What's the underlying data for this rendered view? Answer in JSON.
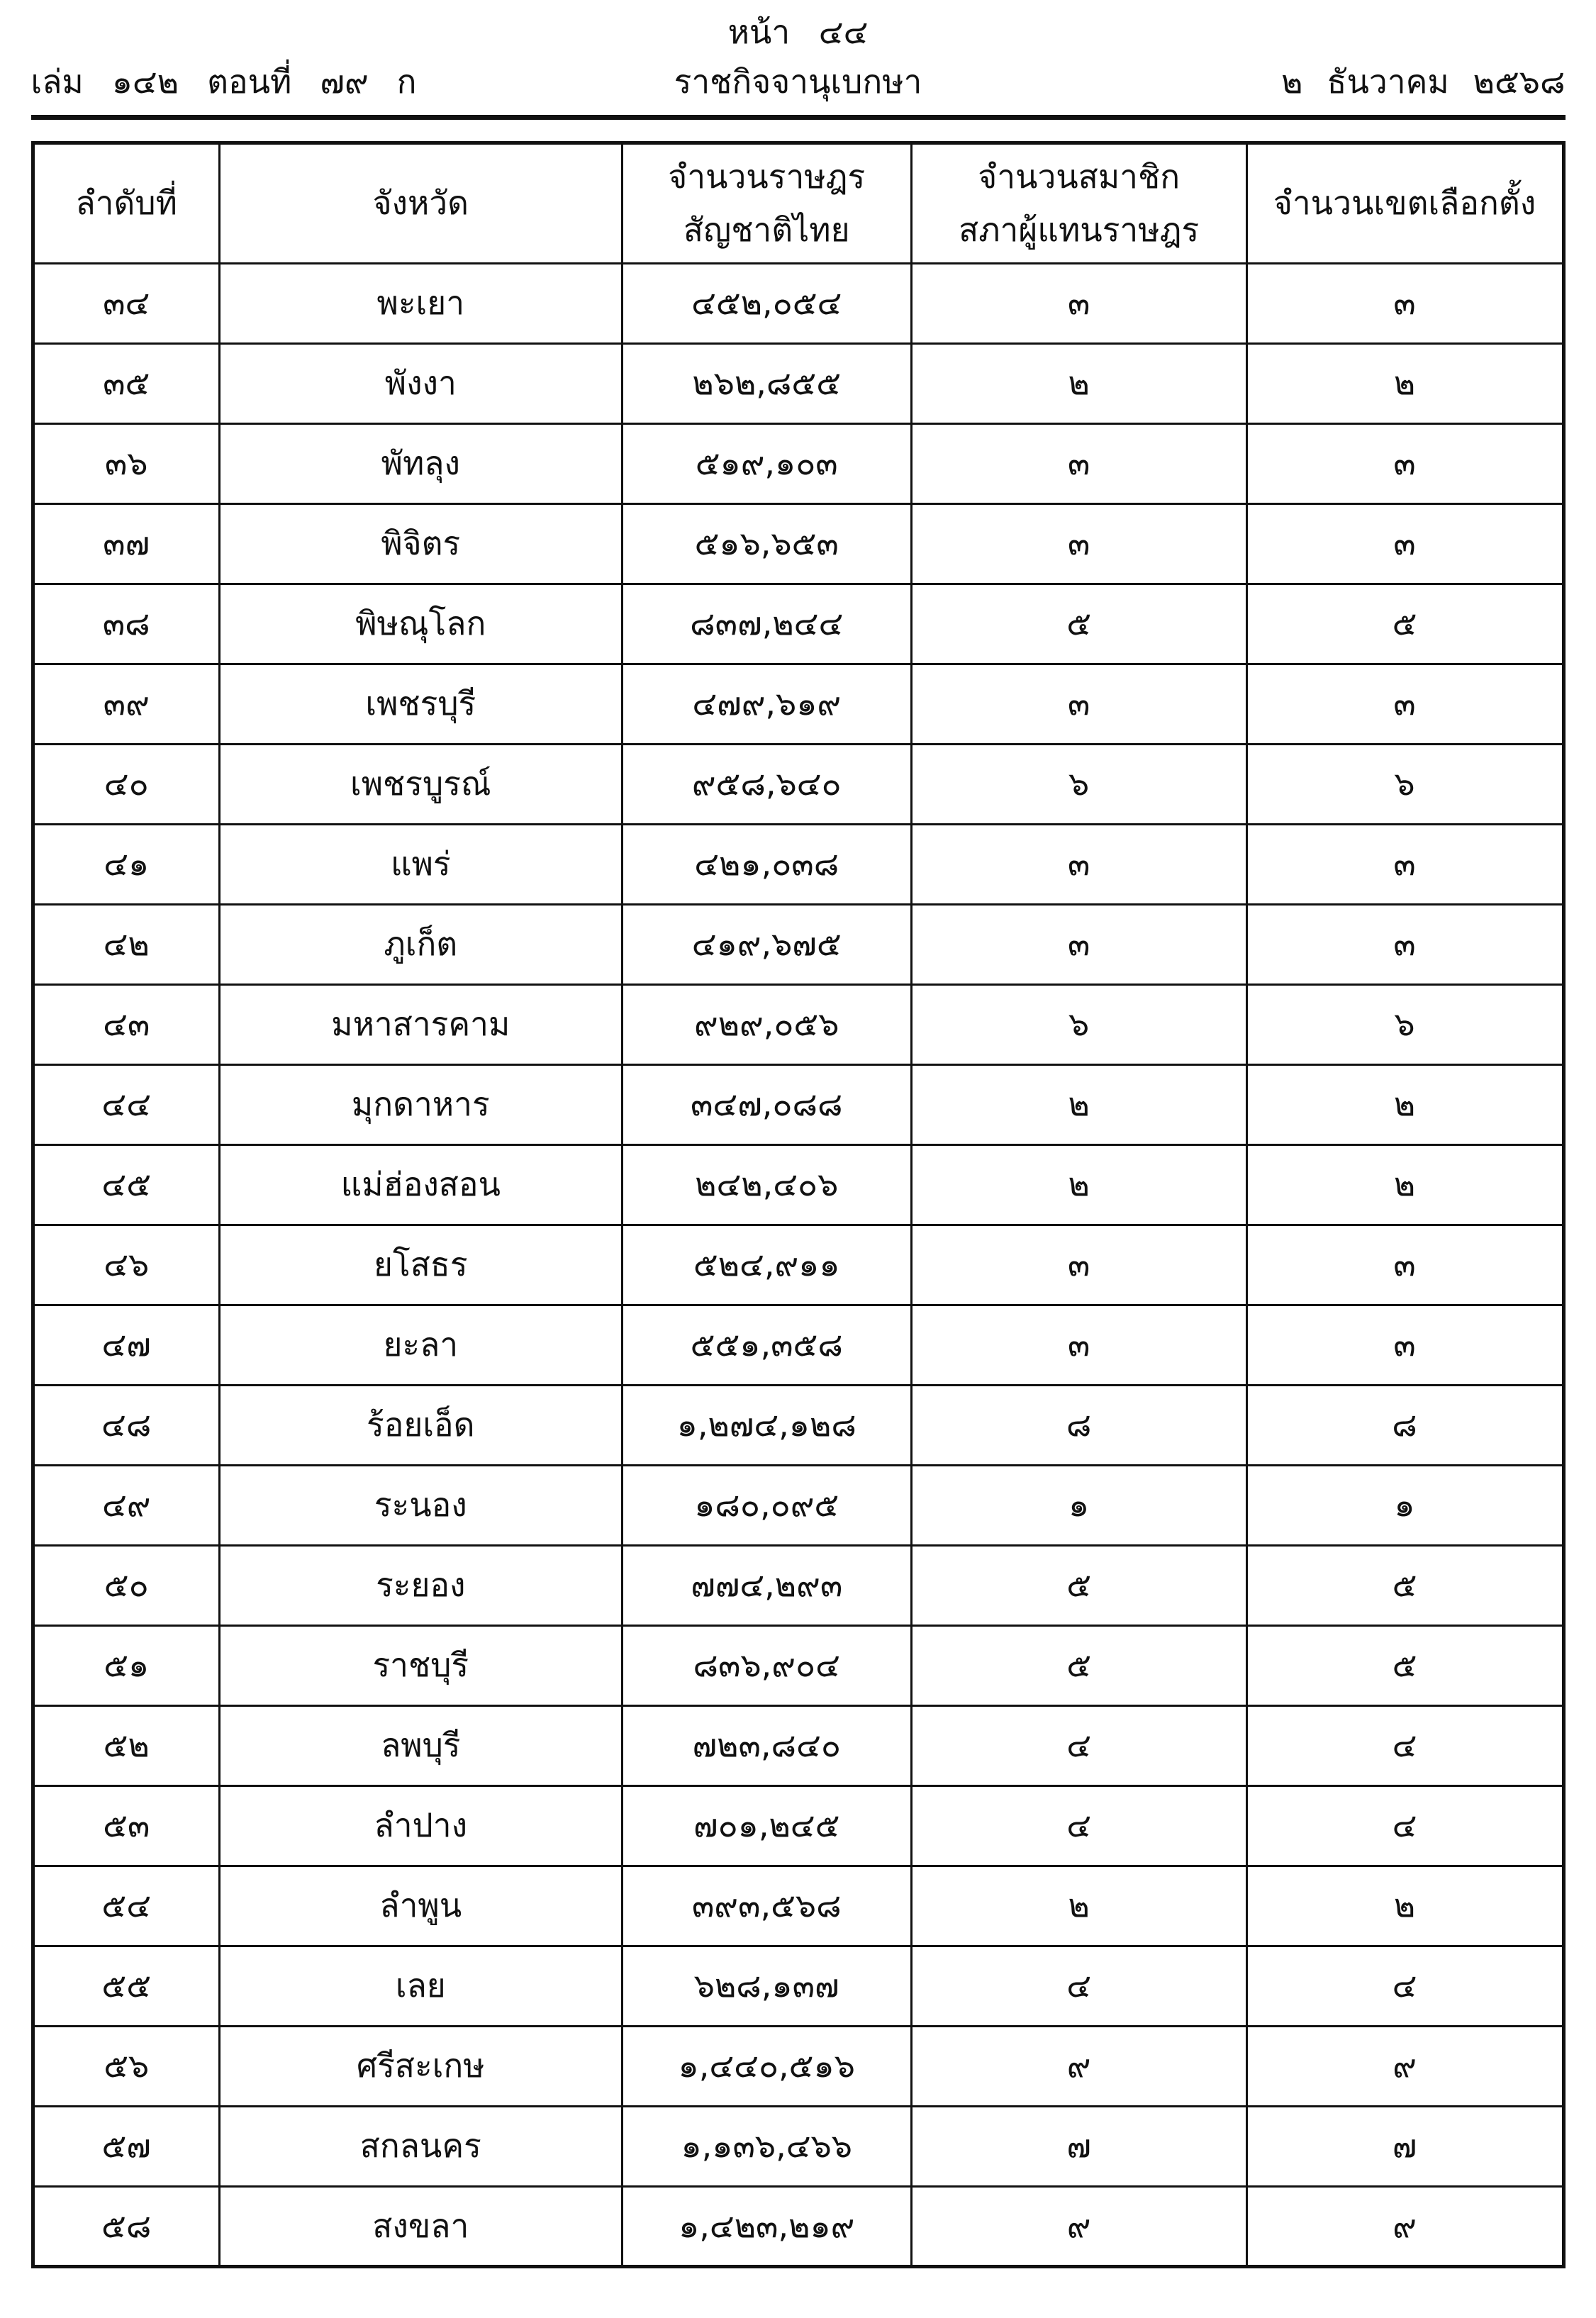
{
  "page": {
    "page_word": "หน้า",
    "page_number": "๔๔",
    "volume_word": "เล่ม",
    "volume_number": "๑๔๒",
    "part_word": "ตอนที่",
    "part_number": "๗๙",
    "section_letter": "ก",
    "gazette_name": "ราชกิจจานุเบกษา",
    "date_day": "๒",
    "date_month": "ธันวาคม",
    "date_year": "๒๕๖๘"
  },
  "table": {
    "headers": [
      {
        "lines": [
          "ลำดับที่"
        ]
      },
      {
        "lines": [
          "จังหวัด"
        ]
      },
      {
        "lines": [
          "จำนวนราษฎร",
          "สัญชาติไทย"
        ]
      },
      {
        "lines": [
          "จำนวนสมาชิก",
          "สภาผู้แทนราษฎร"
        ]
      },
      {
        "lines": [
          "จำนวนเขตเลือกตั้ง"
        ]
      }
    ],
    "rows": [
      {
        "no": "๓๔",
        "province": "พะเยา",
        "population": "๔๕๒,๐๕๔",
        "members": "๓",
        "districts": "๓"
      },
      {
        "no": "๓๕",
        "province": "พังงา",
        "population": "๒๖๒,๘๕๕",
        "members": "๒",
        "districts": "๒"
      },
      {
        "no": "๓๖",
        "province": "พัทลุง",
        "population": "๕๑๙,๑๐๓",
        "members": "๓",
        "districts": "๓"
      },
      {
        "no": "๓๗",
        "province": "พิจิตร",
        "population": "๕๑๖,๖๕๓",
        "members": "๓",
        "districts": "๓"
      },
      {
        "no": "๓๘",
        "province": "พิษณุโลก",
        "population": "๘๓๗,๒๔๔",
        "members": "๕",
        "districts": "๕"
      },
      {
        "no": "๓๙",
        "province": "เพชรบุรี",
        "population": "๔๗๙,๖๑๙",
        "members": "๓",
        "districts": "๓"
      },
      {
        "no": "๔๐",
        "province": "เพชรบูรณ์",
        "population": "๙๕๘,๖๔๐",
        "members": "๖",
        "districts": "๖"
      },
      {
        "no": "๔๑",
        "province": "แพร่",
        "population": "๔๒๑,๐๓๘",
        "members": "๓",
        "districts": "๓"
      },
      {
        "no": "๔๒",
        "province": "ภูเก็ต",
        "population": "๔๑๙,๖๗๕",
        "members": "๓",
        "districts": "๓"
      },
      {
        "no": "๔๓",
        "province": "มหาสารคาม",
        "population": "๙๒๙,๐๕๖",
        "members": "๖",
        "districts": "๖"
      },
      {
        "no": "๔๔",
        "province": "มุกดาหาร",
        "population": "๓๔๗,๐๘๘",
        "members": "๒",
        "districts": "๒"
      },
      {
        "no": "๔๕",
        "province": "แม่ฮ่องสอน",
        "population": "๒๔๒,๔๐๖",
        "members": "๒",
        "districts": "๒"
      },
      {
        "no": "๔๖",
        "province": "ยโสธร",
        "population": "๕๒๔,๙๑๑",
        "members": "๓",
        "districts": "๓"
      },
      {
        "no": "๔๗",
        "province": "ยะลา",
        "population": "๕๕๑,๓๕๘",
        "members": "๓",
        "districts": "๓"
      },
      {
        "no": "๔๘",
        "province": "ร้อยเอ็ด",
        "population": "๑,๒๗๔,๑๒๘",
        "members": "๘",
        "districts": "๘"
      },
      {
        "no": "๔๙",
        "province": "ระนอง",
        "population": "๑๘๐,๐๙๕",
        "members": "๑",
        "districts": "๑"
      },
      {
        "no": "๕๐",
        "province": "ระยอง",
        "population": "๗๗๔,๒๙๓",
        "members": "๕",
        "districts": "๕"
      },
      {
        "no": "๕๑",
        "province": "ราชบุรี",
        "population": "๘๓๖,๙๐๔",
        "members": "๕",
        "districts": "๕"
      },
      {
        "no": "๕๒",
        "province": "ลพบุรี",
        "population": "๗๒๓,๘๔๐",
        "members": "๔",
        "districts": "๔"
      },
      {
        "no": "๕๓",
        "province": "ลำปาง",
        "population": "๗๐๑,๒๔๕",
        "members": "๔",
        "districts": "๔"
      },
      {
        "no": "๕๔",
        "province": "ลำพูน",
        "population": "๓๙๓,๕๖๘",
        "members": "๒",
        "districts": "๒"
      },
      {
        "no": "๕๕",
        "province": "เลย",
        "population": "๖๒๘,๑๓๗",
        "members": "๔",
        "districts": "๔"
      },
      {
        "no": "๕๖",
        "province": "ศรีสะเกษ",
        "population": "๑,๔๔๐,๕๑๖",
        "members": "๙",
        "districts": "๙"
      },
      {
        "no": "๕๗",
        "province": "สกลนคร",
        "population": "๑,๑๓๖,๔๖๖",
        "members": "๗",
        "districts": "๗"
      },
      {
        "no": "๕๘",
        "province": "สงขลา",
        "population": "๑,๔๒๓,๒๑๙",
        "members": "๙",
        "districts": "๙"
      }
    ]
  },
  "chart_data": {
    "type": "table",
    "columns": [
      "ลำดับที่",
      "จังหวัด",
      "จำนวนราษฎรสัญชาติไทย",
      "จำนวนสมาชิกสภาผู้แทนราษฎร",
      "จำนวนเขตเลือกตั้ง"
    ],
    "rows": [
      [
        34,
        "พะเยา",
        452054,
        3,
        3
      ],
      [
        35,
        "พังงา",
        262855,
        2,
        2
      ],
      [
        36,
        "พัทลุง",
        519103,
        3,
        3
      ],
      [
        37,
        "พิจิตร",
        516653,
        3,
        3
      ],
      [
        38,
        "พิษณุโลก",
        837244,
        5,
        5
      ],
      [
        39,
        "เพชรบุรี",
        479619,
        3,
        3
      ],
      [
        40,
        "เพชรบูรณ์",
        958640,
        6,
        6
      ],
      [
        41,
        "แพร่",
        421038,
        3,
        3
      ],
      [
        42,
        "ภูเก็ต",
        419675,
        3,
        3
      ],
      [
        43,
        "มหาสารคาม",
        929056,
        6,
        6
      ],
      [
        44,
        "มุกดาหาร",
        347088,
        2,
        2
      ],
      [
        45,
        "แม่ฮ่องสอน",
        242406,
        2,
        2
      ],
      [
        46,
        "ยโสธร",
        524911,
        3,
        3
      ],
      [
        47,
        "ยะลา",
        551358,
        3,
        3
      ],
      [
        48,
        "ร้อยเอ็ด",
        1274128,
        8,
        8
      ],
      [
        49,
        "ระนอง",
        180095,
        1,
        1
      ],
      [
        50,
        "ระยอง",
        774293,
        5,
        5
      ],
      [
        51,
        "ราชบุรี",
        836904,
        5,
        5
      ],
      [
        52,
        "ลพบุรี",
        723840,
        4,
        4
      ],
      [
        53,
        "ลำปาง",
        701245,
        4,
        4
      ],
      [
        54,
        "ลำพูน",
        393568,
        2,
        2
      ],
      [
        55,
        "เลย",
        628137,
        4,
        4
      ],
      [
        56,
        "ศรีสะเกษ",
        1440516,
        9,
        9
      ],
      [
        57,
        "สกลนคร",
        1136466,
        7,
        7
      ],
      [
        58,
        "สงขลา",
        1423219,
        9,
        9
      ]
    ]
  }
}
